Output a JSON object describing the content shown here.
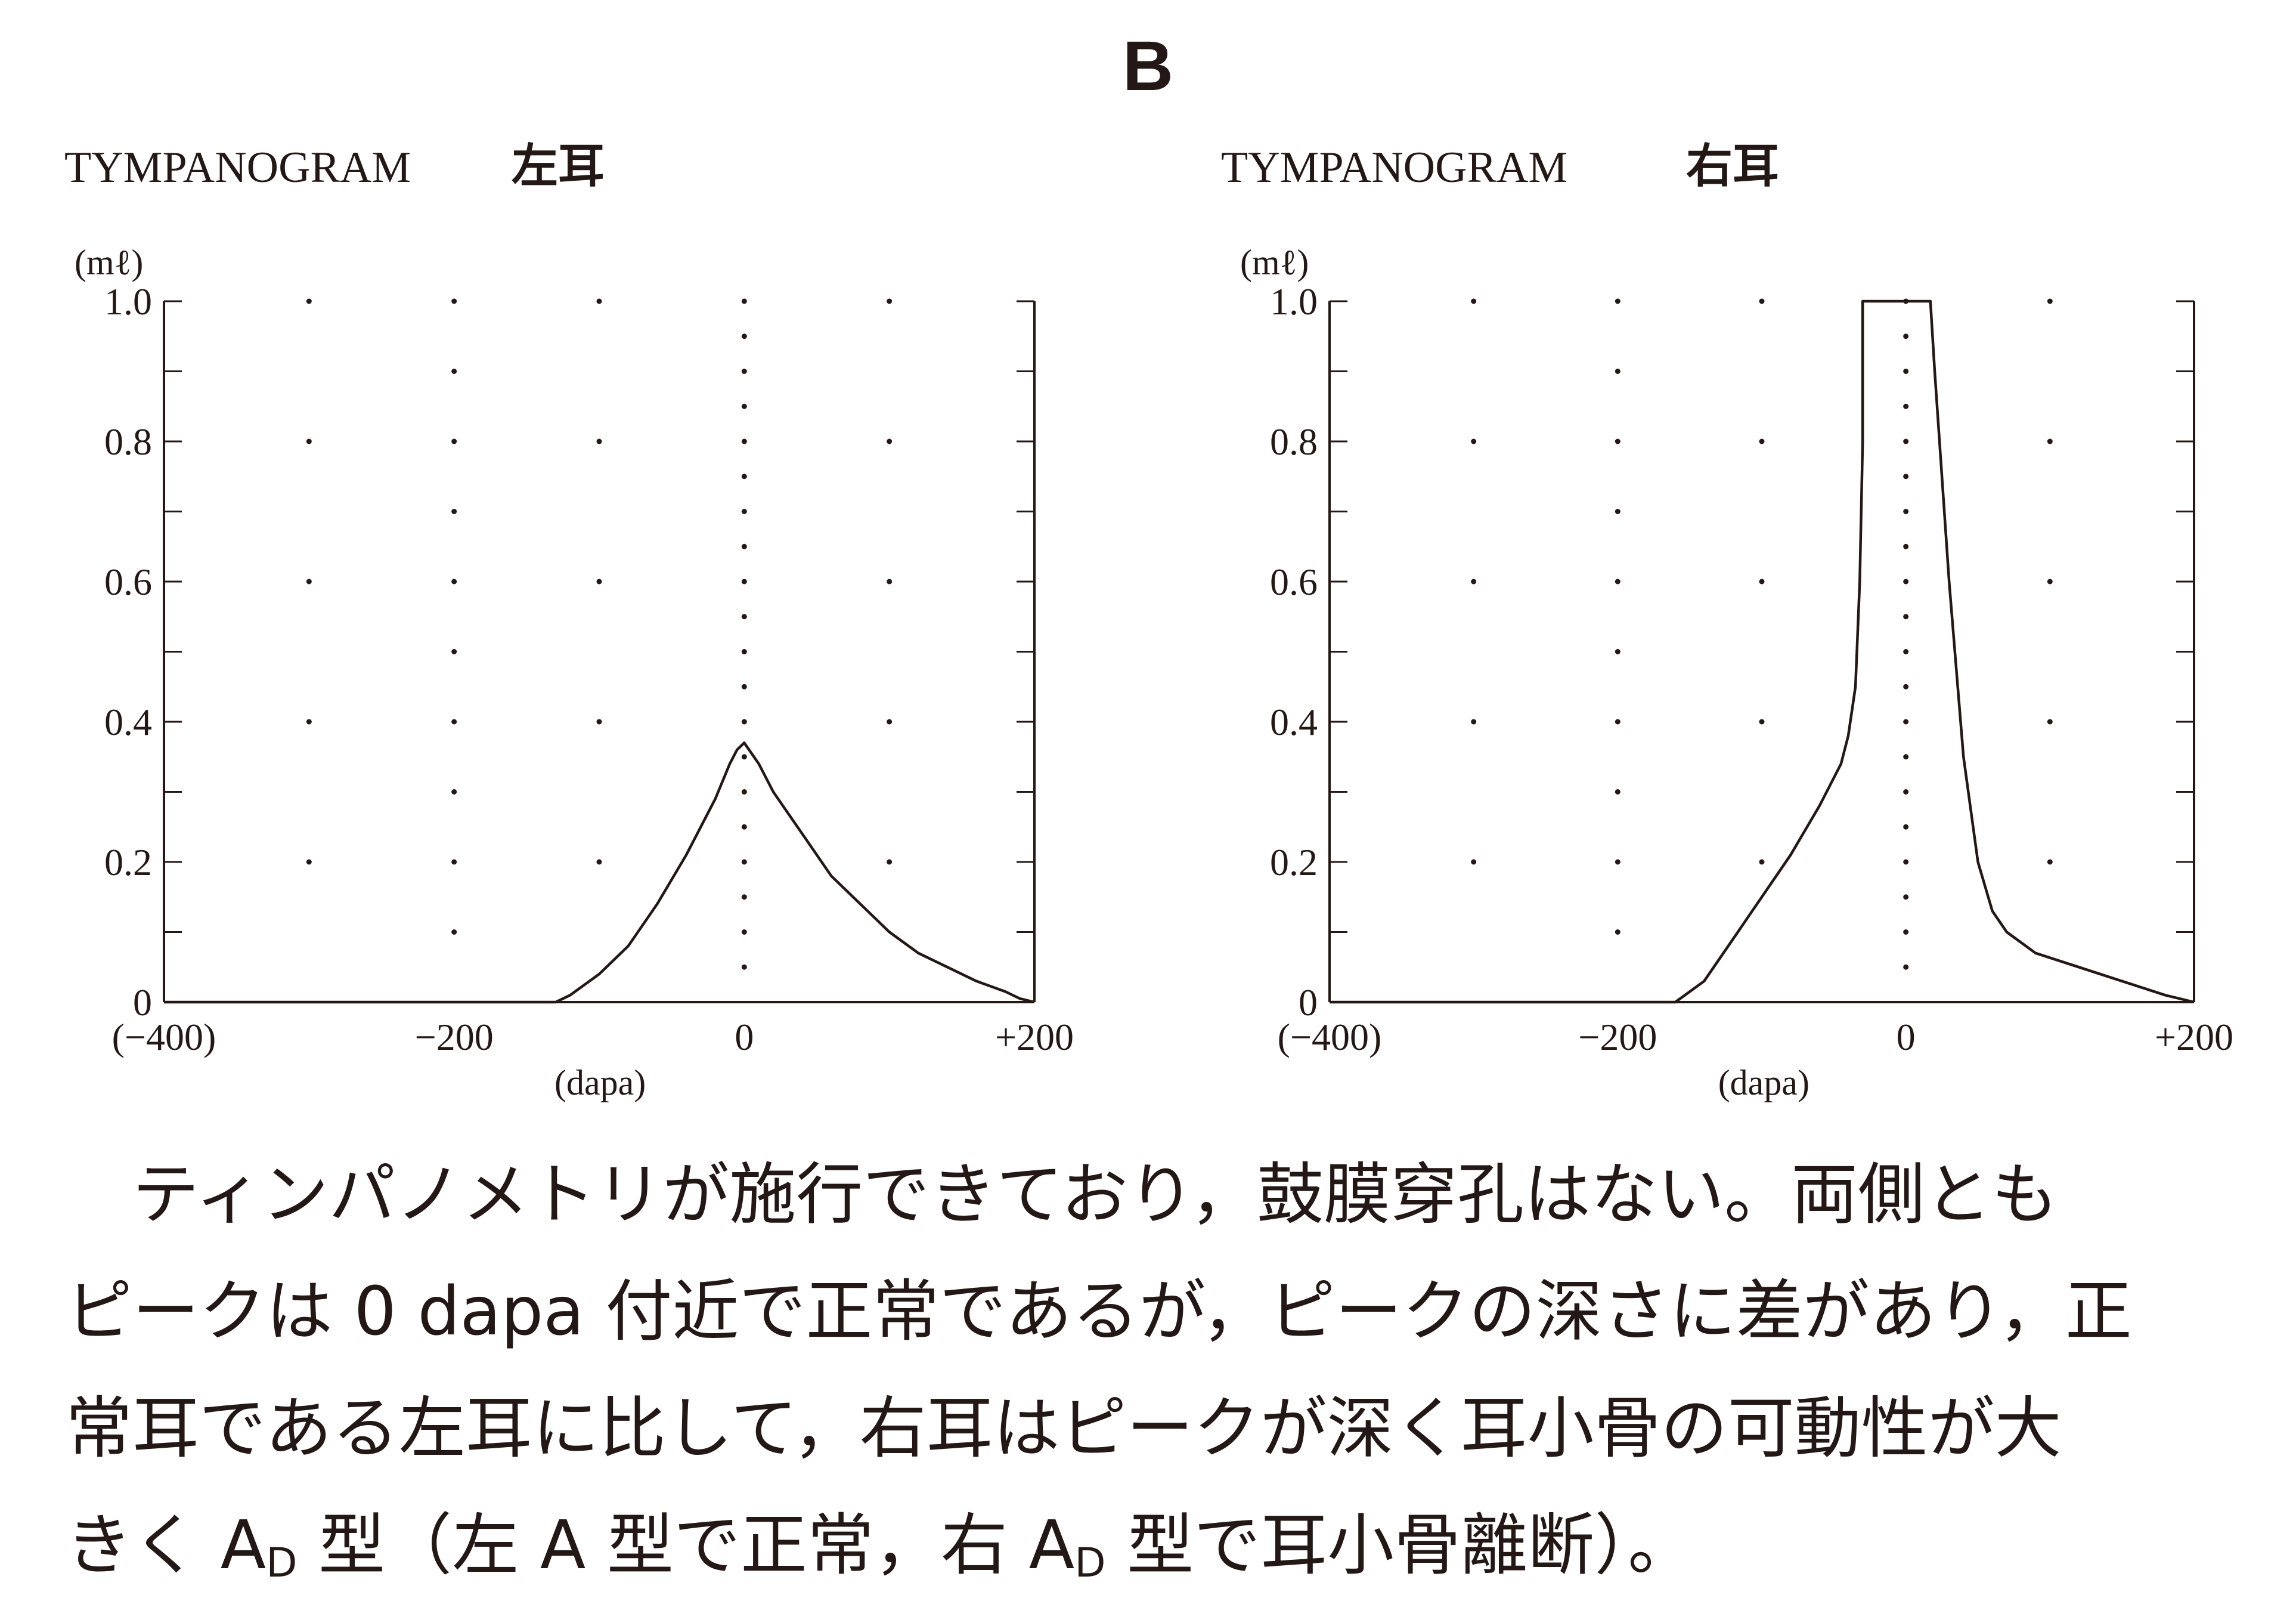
{
  "panel_letter": "B",
  "chart_data": [
    {
      "type": "line",
      "title": "TYMPANOGRAM",
      "subtitle": "左耳",
      "ylabel": "(mℓ)",
      "xlabel": "(dapa)",
      "xlim": [
        -400,
        200
      ],
      "ylim": [
        0,
        1.0
      ],
      "x_ticks": [
        -400,
        -200,
        0,
        200
      ],
      "x_tick_labels": [
        "(−400)",
        "−200",
        "0",
        "+200"
      ],
      "y_ticks": [
        0,
        0.2,
        0.4,
        0.6,
        0.8,
        1.0
      ],
      "y_tick_labels": [
        "0",
        "0.2",
        "0.4",
        "0.6",
        "0.8",
        "1.0"
      ],
      "grid": "dotted",
      "series": [
        {
          "x": [
            -400,
            -130,
            -120,
            -100,
            -80,
            -60,
            -40,
            -20,
            -10,
            -5,
            0,
            10,
            20,
            40,
            60,
            80,
            100,
            120,
            140,
            160,
            180,
            190,
            200
          ],
          "values": [
            0,
            0,
            0.01,
            0.04,
            0.08,
            0.14,
            0.21,
            0.29,
            0.34,
            0.36,
            0.37,
            0.34,
            0.3,
            0.24,
            0.18,
            0.14,
            0.1,
            0.07,
            0.05,
            0.03,
            0.015,
            0.005,
            0
          ]
        }
      ]
    },
    {
      "type": "line",
      "title": "TYMPANOGRAM",
      "subtitle": "右耳",
      "ylabel": "(mℓ)",
      "xlabel": "(dapa)",
      "xlim": [
        -400,
        200
      ],
      "ylim": [
        0,
        1.0
      ],
      "x_ticks": [
        -400,
        -200,
        0,
        200
      ],
      "x_tick_labels": [
        "(−400)",
        "−200",
        "0",
        "+200"
      ],
      "y_ticks": [
        0,
        0.2,
        0.4,
        0.6,
        0.8,
        1.0
      ],
      "y_tick_labels": [
        "0",
        "0.2",
        "0.4",
        "0.6",
        "0.8",
        "1.0"
      ],
      "grid": "dotted",
      "series": [
        {
          "x": [
            -400,
            -160,
            -140,
            -120,
            -100,
            -80,
            -60,
            -45,
            -40,
            -35,
            -32,
            -30,
            -30,
            17,
            20,
            30,
            40,
            50,
            60,
            70,
            90,
            120,
            150,
            180,
            200
          ],
          "values": [
            0,
            0,
            0.03,
            0.09,
            0.15,
            0.21,
            0.28,
            0.34,
            0.38,
            0.45,
            0.6,
            0.8,
            1.0,
            1.0,
            0.9,
            0.6,
            0.35,
            0.2,
            0.13,
            0.1,
            0.07,
            0.05,
            0.03,
            0.01,
            0
          ]
        }
      ]
    }
  ],
  "caption": {
    "line1": "ティンパノメトリが施行できており，鼓膜穿孔はない。両側とも",
    "line2": "ピークは 0 dapa 付近で正常であるが，ピークの深さに差があり，正",
    "line3": "常耳である左耳に比して，右耳はピークが深く耳小骨の可動性が大",
    "line4_a": "きく A",
    "line4_sub1": "D",
    "line4_b": " 型（左 A 型で正常，右 A",
    "line4_sub2": "D",
    "line4_c": " 型で耳小骨離断）。"
  }
}
